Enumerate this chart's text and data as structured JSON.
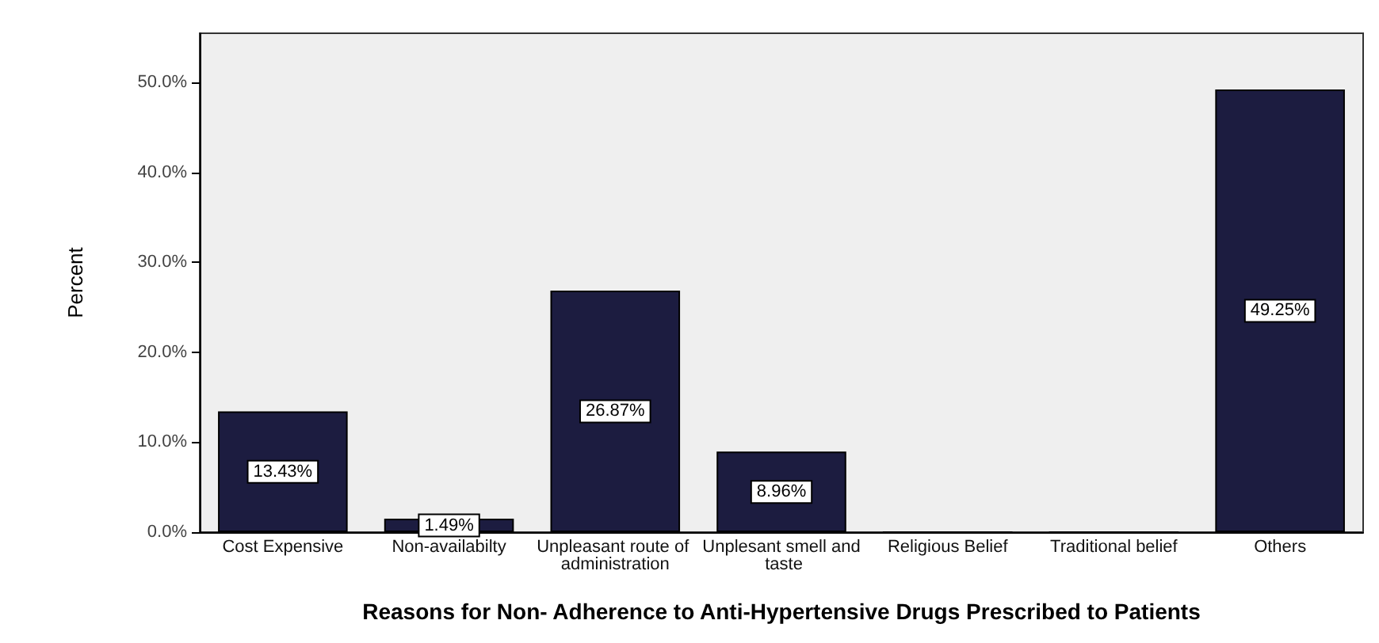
{
  "chart_data": {
    "type": "bar",
    "xlabel": "Reasons for Non- Adherence to Anti-Hypertensive Drugs Prescribed to Patients",
    "ylabel": "Percent",
    "categories": [
      "Cost Expensive",
      "Non-availabilty",
      "Unpleasant route of administration",
      "Unplesant smell and taste",
      "Religious Belief",
      "Traditional belief",
      "Others"
    ],
    "values": [
      13.43,
      1.49,
      26.87,
      8.96,
      0,
      0,
      49.25
    ],
    "value_labels": [
      "13.43%",
      "1.49%",
      "26.87%",
      "8.96%",
      null,
      null,
      "49.25%"
    ],
    "color": "#1c1c40",
    "ylim": [
      0,
      55.5
    ],
    "yticks": [
      {
        "value": 0,
        "label": "0.0%"
      },
      {
        "value": 10,
        "label": "10.0%"
      },
      {
        "value": 20,
        "label": "20.0%"
      },
      {
        "value": 30,
        "label": "30.0%"
      },
      {
        "value": 40,
        "label": "40.0%"
      },
      {
        "value": 50,
        "label": "50.0%"
      }
    ],
    "grid": false
  }
}
